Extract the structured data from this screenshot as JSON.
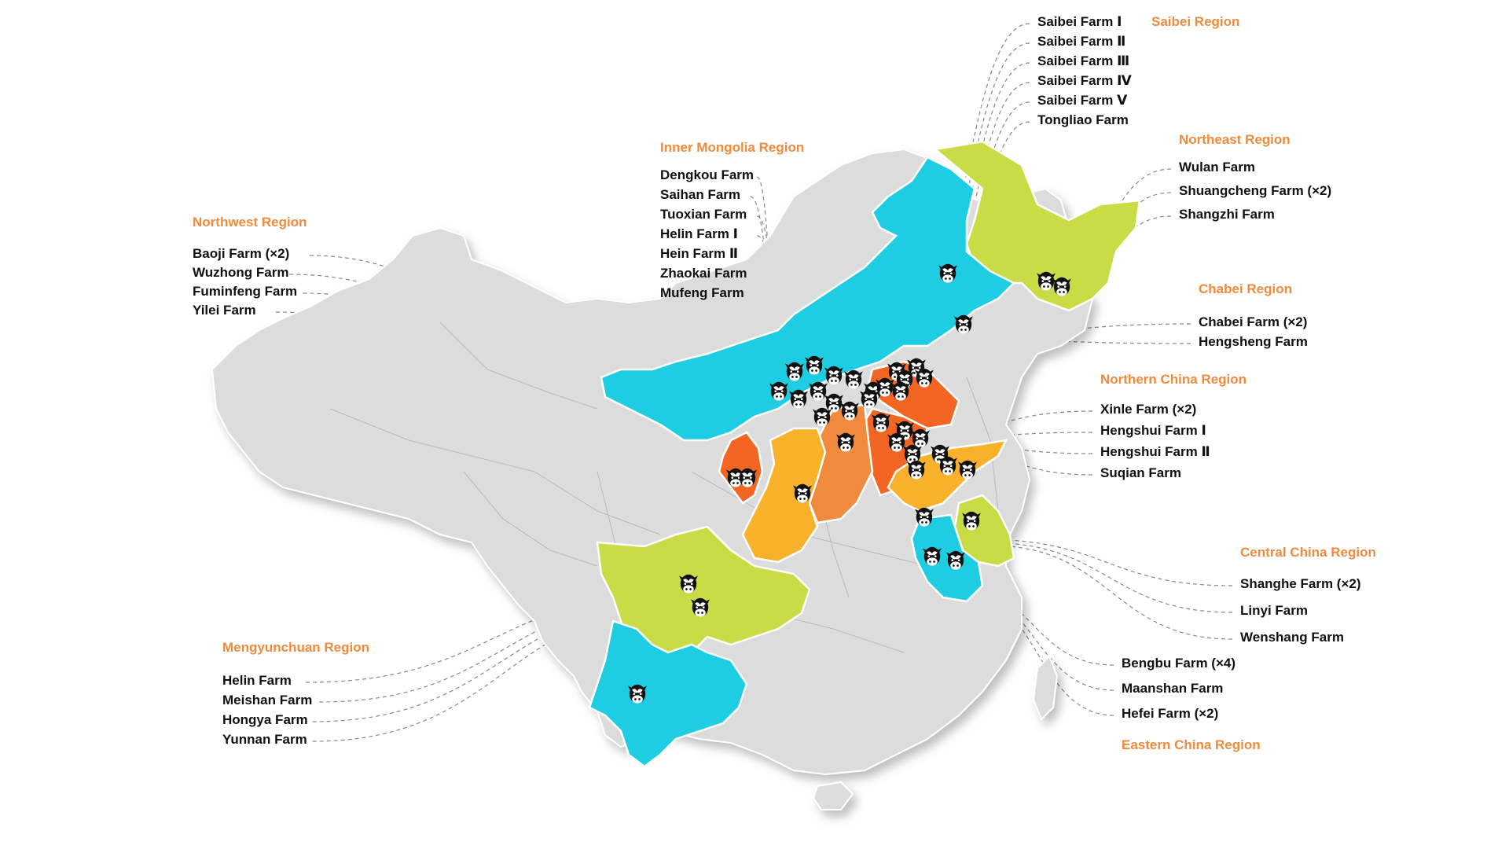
{
  "colors": {
    "accent_label": "#f08a3c",
    "base_province": "#dcdcdc",
    "region_cyan": "#1fcde3",
    "region_lime": "#c8dc45",
    "region_orange_red": "#f26522",
    "region_orange": "#f08a3c",
    "region_amber": "#f7b12b",
    "farm_text": "#111111",
    "leader_line": "#888888"
  },
  "icon": "cow-icon",
  "regions": [
    {
      "id": "saibei",
      "title": "Saibei Region",
      "farms": [
        "Saibei Farm Ⅰ",
        "Saibei Farm Ⅱ",
        "Saibei Farm Ⅲ",
        "Saibei Farm Ⅳ",
        "Saibei Farm Ⅴ",
        "Tongliao Farm"
      ]
    },
    {
      "id": "inner-mongolia",
      "title": "Inner Mongolia Region",
      "farms": [
        "Dengkou Farm",
        "Saihan Farm",
        "Tuoxian Farm",
        "Helin Farm Ⅰ",
        "Hein Farm Ⅱ",
        "Zhaokai Farm",
        "Mufeng Farm"
      ]
    },
    {
      "id": "northeast",
      "title": "Northeast Region",
      "farms": [
        "Wulan Farm",
        "Shuangcheng Farm (×2)",
        "Shangzhi Farm"
      ]
    },
    {
      "id": "northwest",
      "title": "Northwest Region",
      "farms": [
        "Baoji Farm (×2)",
        "Wuzhong Farm",
        "Fuminfeng Farm",
        "Yilei Farm"
      ]
    },
    {
      "id": "chabei",
      "title": "Chabei Region",
      "farms": [
        "Chabei Farm (×2)",
        "Hengsheng Farm"
      ]
    },
    {
      "id": "northern-china",
      "title": "Northern China Region",
      "farms": [
        "Xinle Farm (×2)",
        "Hengshui Farm Ⅰ",
        "Hengshui Farm Ⅱ",
        "Suqian Farm"
      ]
    },
    {
      "id": "central-china",
      "title": "Central China Region",
      "farms": [
        "Shanghe Farm (×2)",
        "Linyi Farm",
        "Wenshang Farm"
      ]
    },
    {
      "id": "mengyunchuan",
      "title": "Mengyunchuan Region",
      "farms": [
        "Helin Farm",
        "Meishan Farm",
        "Hongya Farm",
        "Yunnan Farm"
      ]
    },
    {
      "id": "eastern-china",
      "title": "Eastern China Region",
      "farms": [
        "Bengbu Farm (×4)",
        "Maanshan Farm",
        "Hefei Farm (×2)"
      ]
    }
  ]
}
